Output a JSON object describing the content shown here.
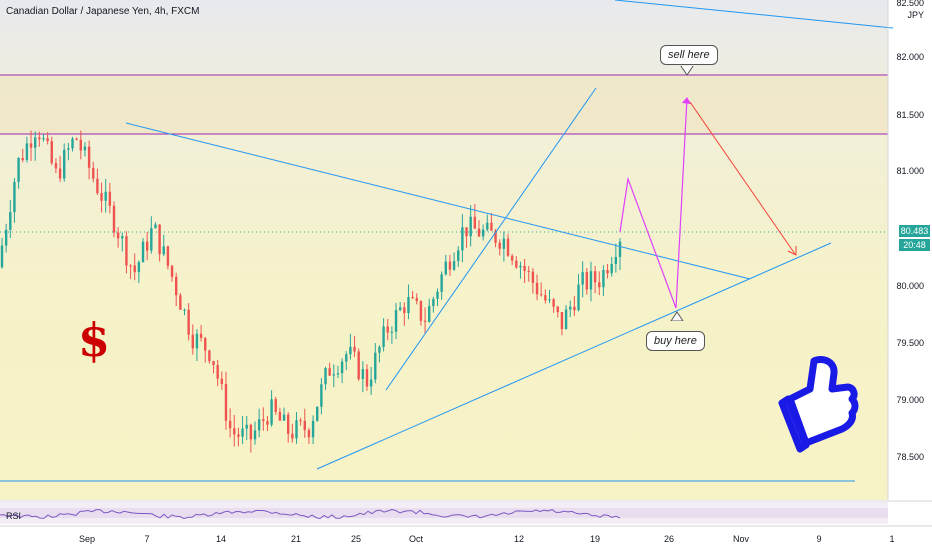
{
  "header": {
    "title": "Canadian Dollar / Japanese Yen, 4h, FXCM",
    "currency": "JPY"
  },
  "price_axis": {
    "labels": [
      "82.500",
      "82.000",
      "81.500",
      "81.000",
      "80.500",
      "80.000",
      "79.500",
      "79.000",
      "78.500"
    ],
    "current_price": "80.483",
    "countdown": "20:48"
  },
  "time_axis": {
    "labels": [
      "Sep",
      "7",
      "14",
      "21",
      "25",
      "Oct",
      "12",
      "19",
      "26",
      "Nov",
      "9",
      "1"
    ]
  },
  "annotations": {
    "sell_label": "sell here",
    "buy_label": "buy here",
    "dollar_symbol": "$"
  },
  "rsi": {
    "label": "RSI"
  },
  "colors": {
    "up": "#26a69a",
    "down": "#ef5350",
    "trendline": "#2196f3",
    "resistance": "#9c27b0",
    "projection": "#e040fb",
    "arrow": "#f44336",
    "price_tag": "#26a69a",
    "thumb": "#1a1ae6"
  },
  "chart_data": {
    "type": "candlestick",
    "title": "Canadian Dollar / Japanese Yen, 4h, FXCM",
    "ylim": [
      78.3,
      82.55
    ],
    "ylabel": "JPY",
    "close_path": [
      [
        "Aug 31",
        80.2
      ],
      [
        "Sep 2",
        81.1
      ],
      [
        "Sep 3",
        81.45
      ],
      [
        "Sep 4",
        81.0
      ],
      [
        "Sep 7",
        81.35
      ],
      [
        "Sep 8",
        80.95
      ],
      [
        "Sep 10",
        80.6
      ],
      [
        "Sep 11",
        80.15
      ],
      [
        "Sep 14",
        80.55
      ],
      [
        "Sep 15",
        80.1
      ],
      [
        "Sep 17",
        79.6
      ],
      [
        "Sep 18",
        79.45
      ],
      [
        "Sep 21",
        78.75
      ],
      [
        "Sep 22",
        78.7
      ],
      [
        "Sep 24",
        78.95
      ],
      [
        "Sep 25",
        78.75
      ],
      [
        "Sep 28",
        78.8
      ],
      [
        "Sep 29",
        79.3
      ],
      [
        "Sep 30",
        79.45
      ],
      [
        "Oct 1",
        79.2
      ],
      [
        "Oct 2",
        79.65
      ],
      [
        "Oct 5",
        79.9
      ],
      [
        "Oct 6",
        79.75
      ],
      [
        "Oct 8",
        80.2
      ],
      [
        "Oct 9",
        80.55
      ],
      [
        "Oct 12",
        80.5
      ],
      [
        "Oct 13",
        80.45
      ],
      [
        "Oct 14",
        80.2
      ],
      [
        "Oct 15",
        79.95
      ],
      [
        "Oct 16",
        79.7
      ],
      [
        "Oct 19",
        80.05
      ],
      [
        "Oct 20",
        80.1
      ],
      [
        "Oct 21",
        80.48
      ]
    ],
    "resistance_zone": [
      81.35,
      81.85
    ],
    "support_level": 78.35,
    "current_price": 80.483,
    "projection": [
      [
        "Oct 21",
        80.48
      ],
      [
        "Oct 22",
        80.95
      ],
      [
        "Oct 26",
        79.8
      ],
      [
        "Oct 27",
        81.65
      ],
      [
        "Nov 5",
        80.25
      ]
    ]
  }
}
